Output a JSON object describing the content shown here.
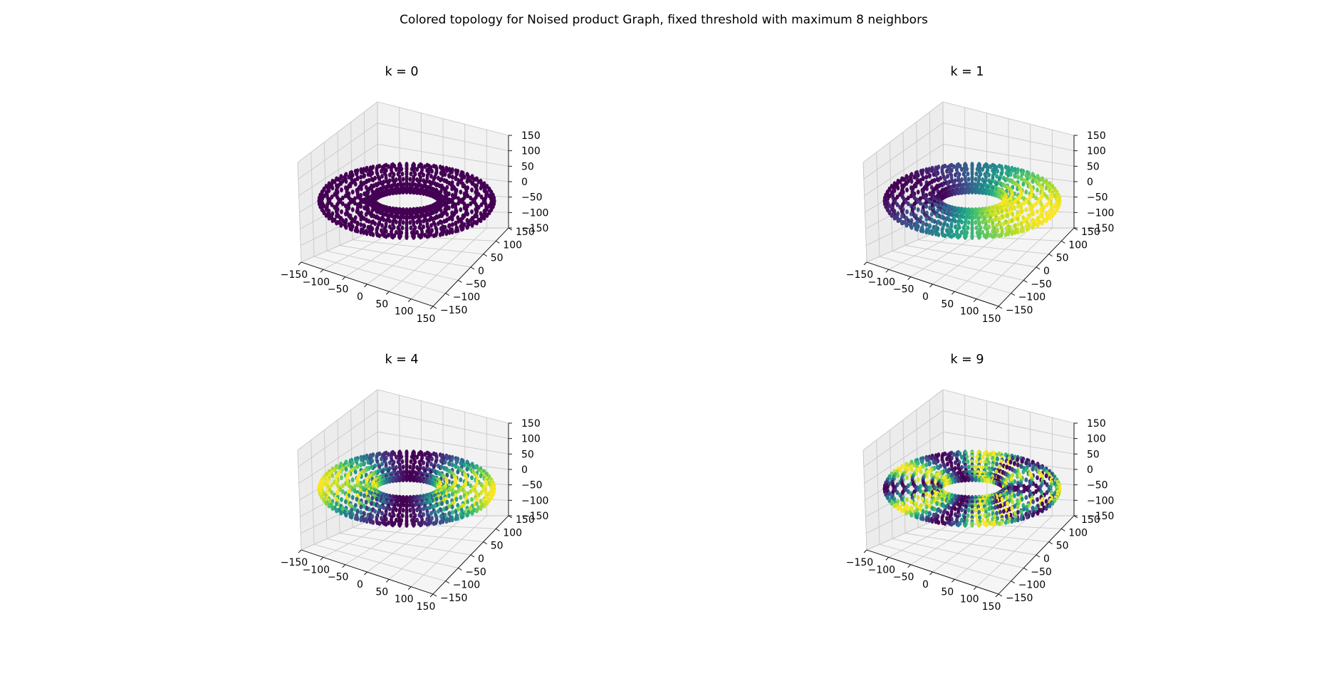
{
  "figure": {
    "title": "Colored topology for Noised product Graph, fixed threshold with maximum 8 neighbors"
  },
  "chart_data": [
    {
      "type": "scatter",
      "projection": "3d",
      "title": "k = 0",
      "shape": "torus",
      "colormap": "viridis",
      "color_pattern": "uniform",
      "xticks": [
        "−150",
        "−100",
        "−50",
        "0",
        "50",
        "100",
        "150"
      ],
      "yticks": [
        "150",
        "100",
        "50",
        "0",
        "−50",
        "−100",
        "−150"
      ],
      "zticks": [
        "150",
        "100",
        "50",
        "0",
        "−50",
        "−100",
        "−150"
      ],
      "xlim": [
        -150,
        150
      ],
      "ylim": [
        -150,
        150
      ],
      "zlim": [
        -150,
        150
      ],
      "grid": true
    },
    {
      "type": "scatter",
      "projection": "3d",
      "title": "k = 1",
      "shape": "torus",
      "colormap": "viridis",
      "color_pattern": "single-wave-around-ring",
      "xticks": [
        "−150",
        "−100",
        "−50",
        "0",
        "50",
        "100",
        "150"
      ],
      "yticks": [
        "150",
        "100",
        "50",
        "0",
        "−50",
        "−100",
        "−150"
      ],
      "zticks": [
        "150",
        "100",
        "50",
        "0",
        "−50",
        "−100",
        "−150"
      ],
      "xlim": [
        -150,
        150
      ],
      "ylim": [
        -150,
        150
      ],
      "zlim": [
        -150,
        150
      ],
      "grid": true
    },
    {
      "type": "scatter",
      "projection": "3d",
      "title": "k = 4",
      "shape": "torus",
      "colormap": "viridis",
      "color_pattern": "double-wave-around-ring",
      "xticks": [
        "−150",
        "−100",
        "−50",
        "0",
        "50",
        "100",
        "150"
      ],
      "yticks": [
        "150",
        "100",
        "50",
        "0",
        "−50",
        "−100",
        "−150"
      ],
      "zticks": [
        "150",
        "100",
        "50",
        "0",
        "−50",
        "−100",
        "−150"
      ],
      "xlim": [
        -150,
        150
      ],
      "ylim": [
        -150,
        150
      ],
      "zlim": [
        -150,
        150
      ],
      "grid": true
    },
    {
      "type": "scatter",
      "projection": "3d",
      "title": "k = 9",
      "shape": "torus",
      "colormap": "viridis",
      "color_pattern": "high-frequency-around-ring",
      "xticks": [
        "−150",
        "−100",
        "−50",
        "0",
        "50",
        "100",
        "150"
      ],
      "yticks": [
        "150",
        "100",
        "50",
        "0",
        "−50",
        "−100",
        "−150"
      ],
      "zticks": [
        "150",
        "100",
        "50",
        "0",
        "−50",
        "−100",
        "−150"
      ],
      "xlim": [
        -150,
        150
      ],
      "ylim": [
        -150,
        150
      ],
      "zlim": [
        -150,
        150
      ],
      "grid": true
    }
  ]
}
